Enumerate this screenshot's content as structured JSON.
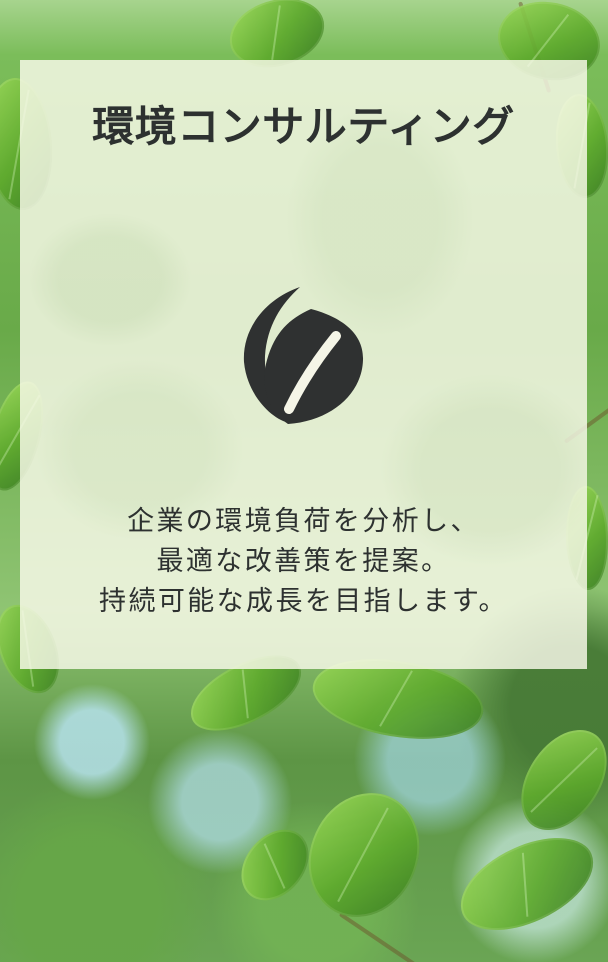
{
  "card": {
    "title": "環境コンサルティング",
    "logo_icon": "leaf-pair-icon",
    "description_lines": [
      "企業の環境負荷を分析し、",
      "最適な改善策を提案。",
      "持続可能な成長を目指します。"
    ]
  },
  "colors": {
    "text": "#2d3130",
    "card_overlay": "#fafaEC",
    "leaf_green": "#5eaa2c"
  }
}
